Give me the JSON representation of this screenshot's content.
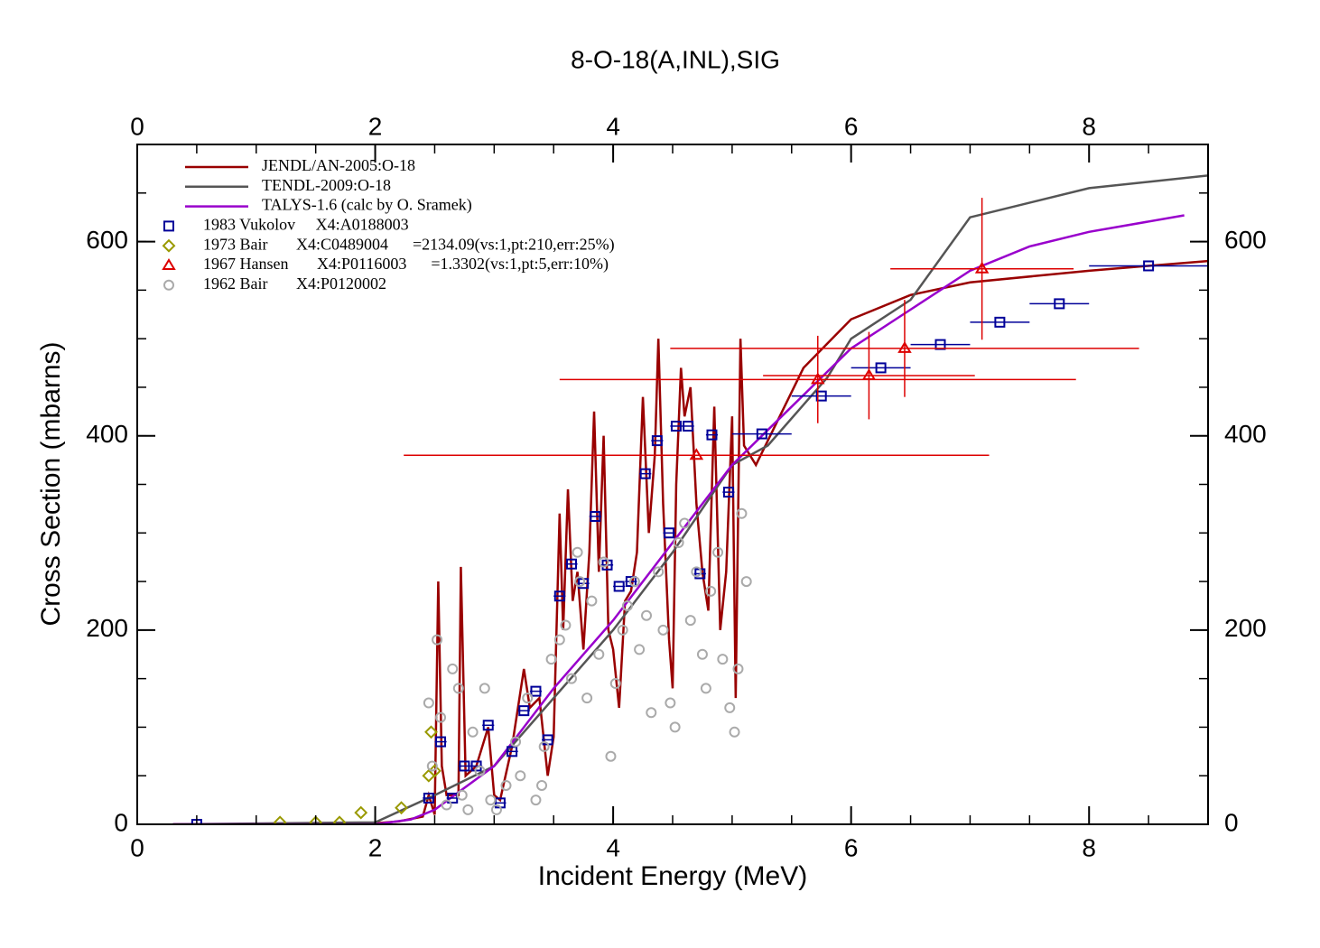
{
  "chart_data": {
    "type": "scatter",
    "title": "8-O-18(A,INL),SIG",
    "x_label": "Incident Energy (MeV)",
    "y_label": "Cross Section (mbarns)",
    "xlim": [
      0,
      9
    ],
    "ylim": [
      0,
      700
    ],
    "xticks": [
      0,
      2,
      4,
      6,
      8
    ],
    "yticks": [
      0,
      200,
      400,
      600
    ],
    "legend": "upper left",
    "series": [
      {
        "name": "JENDL/AN-2005:O-18",
        "kind": "line",
        "color": "#990000",
        "x": [
          0.3,
          2.0,
          2.2,
          2.4,
          2.45,
          2.5,
          2.53,
          2.56,
          2.6,
          2.7,
          2.72,
          2.76,
          2.85,
          2.95,
          3.0,
          3.05,
          3.15,
          3.25,
          3.3,
          3.38,
          3.45,
          3.5,
          3.55,
          3.58,
          3.62,
          3.66,
          3.7,
          3.75,
          3.8,
          3.84,
          3.88,
          3.92,
          3.96,
          4.0,
          4.05,
          4.1,
          4.15,
          4.2,
          4.25,
          4.3,
          4.35,
          4.38,
          4.42,
          4.47,
          4.5,
          4.53,
          4.57,
          4.6,
          4.65,
          4.7,
          4.75,
          4.8,
          4.85,
          4.9,
          4.95,
          5.0,
          5.03,
          5.07,
          5.1,
          5.2,
          5.4,
          5.6,
          6.0,
          6.5,
          7.0,
          8.0,
          9.0
        ],
        "values": [
          0,
          1,
          3,
          8,
          30,
          10,
          250,
          60,
          30,
          30,
          265,
          50,
          60,
          100,
          30,
          25,
          80,
          160,
          120,
          130,
          50,
          90,
          320,
          200,
          345,
          230,
          260,
          180,
          280,
          425,
          260,
          400,
          200,
          180,
          120,
          230,
          240,
          280,
          440,
          300,
          380,
          500,
          330,
          190,
          140,
          350,
          470,
          420,
          450,
          330,
          260,
          220,
          430,
          200,
          260,
          420,
          130,
          500,
          390,
          370,
          420,
          470,
          520,
          545,
          558,
          570,
          580
        ]
      },
      {
        "name": "TENDL-2009:O-18",
        "kind": "line",
        "color": "#555555",
        "x": [
          0.3,
          2.0,
          2.5,
          3.0,
          3.5,
          4.0,
          4.5,
          5.0,
          5.3,
          5.8,
          6.0,
          6.5,
          7.0,
          8.0,
          9.0
        ],
        "values": [
          0,
          2,
          30,
          60,
          130,
          200,
          280,
          370,
          390,
          460,
          500,
          540,
          625,
          655,
          668
        ]
      },
      {
        "name": "TALYS-1.6 (calc by O. Sramek)",
        "kind": "line",
        "color": "#9900cc",
        "x": [
          0.3,
          2.0,
          2.3,
          2.5,
          3.0,
          3.5,
          4.0,
          4.5,
          5.0,
          5.5,
          6.0,
          6.5,
          7.0,
          7.5,
          8.0,
          8.8
        ],
        "values": [
          0,
          0,
          5,
          15,
          60,
          140,
          210,
          290,
          370,
          430,
          490,
          530,
          570,
          595,
          610,
          627
        ]
      },
      {
        "name": "1983 Vukolov     X4:A0188003",
        "kind": "square",
        "color": "#000099",
        "x": [
          0.5,
          2.45,
          2.55,
          2.65,
          2.75,
          2.85,
          2.95,
          3.05,
          3.15,
          3.25,
          3.35,
          3.45,
          3.55,
          3.65,
          3.75,
          3.85,
          3.95,
          4.05,
          4.15,
          4.27,
          4.37,
          4.47,
          4.53,
          4.63,
          4.73,
          4.83,
          4.97,
          5.25,
          5.75,
          6.25,
          6.75,
          7.25,
          7.75,
          8.5
        ],
        "values": [
          0,
          27,
          85,
          27,
          60,
          60,
          102,
          22,
          75,
          117,
          137,
          87,
          235,
          268,
          248,
          317,
          267,
          245,
          250,
          361,
          395,
          300,
          410,
          410,
          258,
          401,
          342,
          402,
          441,
          470,
          494,
          517,
          536,
          575
        ],
        "xerr": [
          0.05,
          0.05,
          0.05,
          0.05,
          0.05,
          0.05,
          0.05,
          0.05,
          0.05,
          0.05,
          0.05,
          0.05,
          0.05,
          0.05,
          0.05,
          0.05,
          0.05,
          0.05,
          0.05,
          0.05,
          0.05,
          0.05,
          0.05,
          0.05,
          0.05,
          0.05,
          0.05,
          0.25,
          0.25,
          0.25,
          0.25,
          0.25,
          0.25,
          0.5
        ]
      },
      {
        "name": "1973 Bair       X4:C0489004      =2134.09(vs:1,pt:210,err:25%)",
        "kind": "diamond",
        "color": "#999900",
        "x": [
          1.2,
          1.5,
          1.7,
          1.88,
          2.22,
          2.45,
          2.47,
          2.5
        ],
        "values": [
          2,
          2,
          2,
          12,
          17,
          50,
          95,
          55
        ]
      },
      {
        "name": "1967 Hansen       X4:P0116003      =1.3302(vs:1,pt:5,err:10%)",
        "kind": "triangle",
        "color": "#dd0000",
        "x": [
          4.7,
          5.72,
          6.15,
          6.45,
          7.1
        ],
        "values": [
          380,
          458,
          462,
          490,
          572
        ],
        "xerr": [
          2.46,
          2.17,
          0.89,
          1.97,
          0.77
        ],
        "yerr": [
          0,
          45,
          45,
          50,
          73
        ]
      },
      {
        "name": "1962 Bair       X4:P0120002",
        "kind": "circle",
        "color": "#aaaaaa",
        "x": [
          2.45,
          2.48,
          2.52,
          2.55,
          2.6,
          2.65,
          2.7,
          2.73,
          2.78,
          2.82,
          2.88,
          2.92,
          2.97,
          3.02,
          3.1,
          3.18,
          3.22,
          3.28,
          3.35,
          3.4,
          3.42,
          3.48,
          3.55,
          3.6,
          3.65,
          3.7,
          3.72,
          3.78,
          3.82,
          3.88,
          3.92,
          3.98,
          4.02,
          4.08,
          4.12,
          4.18,
          4.22,
          4.28,
          4.32,
          4.38,
          4.42,
          4.48,
          4.52,
          4.55,
          4.6,
          4.65,
          4.7,
          4.75,
          4.78,
          4.82,
          4.88,
          4.92,
          4.98,
          5.02,
          5.05,
          5.08,
          5.12
        ],
        "values": [
          125,
          60,
          190,
          110,
          20,
          160,
          140,
          30,
          15,
          95,
          55,
          140,
          25,
          15,
          40,
          85,
          50,
          130,
          25,
          40,
          80,
          170,
          190,
          205,
          150,
          280,
          250,
          130,
          230,
          175,
          270,
          70,
          145,
          200,
          225,
          250,
          180,
          215,
          115,
          260,
          200,
          125,
          100,
          290,
          310,
          210,
          260,
          175,
          140,
          240,
          280,
          170,
          120,
          95,
          160,
          320,
          250
        ]
      }
    ]
  }
}
